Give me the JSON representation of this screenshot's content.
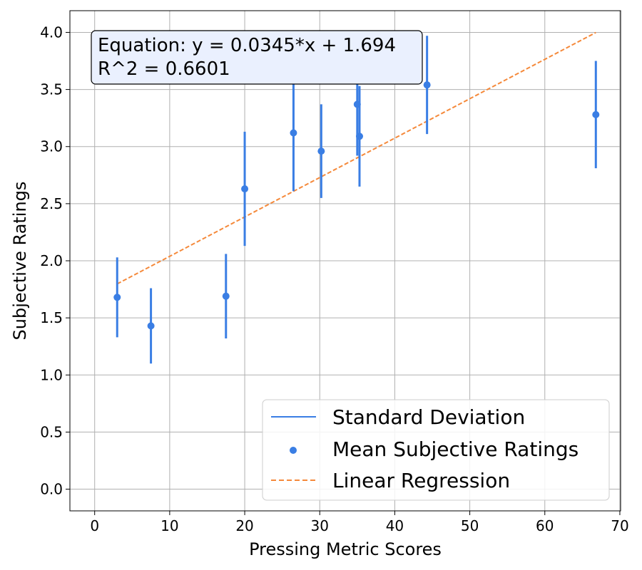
{
  "chart_data": {
    "type": "scatter",
    "xlabel": "Pressing Metric Scores",
    "ylabel": "Subjective Ratings",
    "xlim": [
      -3.3,
      70.1
    ],
    "ylim": [
      -0.19,
      4.19
    ],
    "xticks": [
      0,
      10,
      20,
      30,
      40,
      50,
      60,
      70
    ],
    "yticks": [
      0.0,
      0.5,
      1.0,
      1.5,
      2.0,
      2.5,
      3.0,
      3.5,
      4.0
    ],
    "xtick_labels": [
      "0",
      "10",
      "20",
      "30",
      "40",
      "50",
      "60",
      "70"
    ],
    "ytick_labels": [
      "0.0",
      "0.5",
      "1.0",
      "1.5",
      "2.0",
      "2.5",
      "3.0",
      "3.5",
      "4.0"
    ],
    "grid": true,
    "points": [
      {
        "x": 3.0,
        "y": 1.68,
        "sd": 0.35
      },
      {
        "x": 7.5,
        "y": 1.43,
        "sd": 0.33
      },
      {
        "x": 17.5,
        "y": 1.69,
        "sd": 0.37
      },
      {
        "x": 20.0,
        "y": 2.63,
        "sd": 0.5
      },
      {
        "x": 26.5,
        "y": 3.12,
        "sd": 0.51
      },
      {
        "x": 30.2,
        "y": 2.96,
        "sd": 0.41
      },
      {
        "x": 35.0,
        "y": 3.37,
        "sd": 0.45
      },
      {
        "x": 35.3,
        "y": 3.09,
        "sd": 0.44
      },
      {
        "x": 44.3,
        "y": 3.54,
        "sd": 0.43
      },
      {
        "x": 66.8,
        "y": 3.28,
        "sd": 0.47
      }
    ],
    "regression": {
      "slope": 0.0345,
      "intercept": 1.694,
      "x_start": 3.0,
      "x_end": 66.8
    },
    "annotation": {
      "line1": "Equation: y = 0.0345*x + 1.694",
      "line2": "R^2 = 0.6601"
    },
    "legend": {
      "placement": "lower-right",
      "entries": [
        "Standard Deviation",
        "Mean Subjective Ratings",
        "Linear Regression"
      ]
    },
    "colors": {
      "points": "#3a7ee4",
      "regression": "#f5893a",
      "annotation_bg": "#eaf0fe"
    }
  }
}
